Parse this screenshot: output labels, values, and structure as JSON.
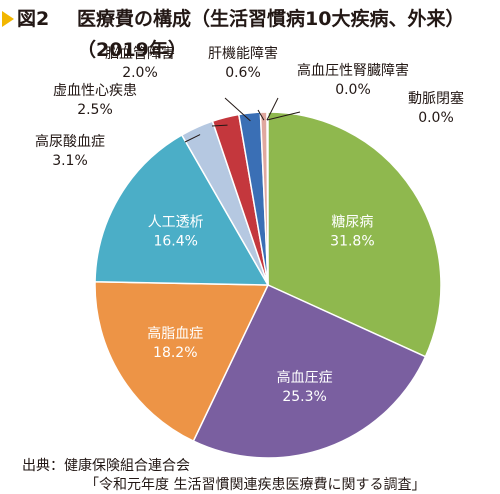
{
  "figure": {
    "label": "図2",
    "title_line1": "医療費の構成（生活習慣病10大疾病、外来）",
    "title_line2": "（2019年）"
  },
  "source": {
    "line1": "出典：健康保険組合連合会",
    "line2": "「令和元年度 生活習慣関連疾患医療費に関する調査」"
  },
  "colors": {
    "marker": "#f2b600",
    "leader_line": "#231815",
    "slice_border": "#ffffff"
  },
  "chart_data": {
    "type": "pie",
    "unit": "%",
    "start_angle_deg": 0,
    "direction": "clockwise",
    "slices": [
      {
        "label": "糖尿病",
        "value": 31.8,
        "value_label": "31.8%",
        "color": "#8fb84e",
        "label_placement": "inside"
      },
      {
        "label": "高血圧症",
        "value": 25.3,
        "value_label": "25.3%",
        "color": "#7a5fa0",
        "label_placement": "inside"
      },
      {
        "label": "高脂血症",
        "value": 18.2,
        "value_label": "18.2%",
        "color": "#ed9446",
        "label_placement": "inside"
      },
      {
        "label": "人工透析",
        "value": 16.4,
        "value_label": "16.4%",
        "color": "#4baec7",
        "label_placement": "inside"
      },
      {
        "label": "高尿酸血症",
        "value": 3.1,
        "value_label": "3.1%",
        "color": "#b5c8e1",
        "label_placement": "outside"
      },
      {
        "label": "虚血性心疾患",
        "value": 2.5,
        "value_label": "2.5%",
        "color": "#c4373d",
        "label_placement": "outside"
      },
      {
        "label": "脳血管障害",
        "value": 2.0,
        "value_label": "2.0%",
        "color": "#3a6fb5",
        "label_placement": "outside"
      },
      {
        "label": "肝機能障害",
        "value": 0.6,
        "value_label": "0.6%",
        "color": "#e0a89f",
        "label_placement": "outside"
      },
      {
        "label": "高血圧性腎臓障害",
        "value": 0.0,
        "value_label": "0.0%",
        "color": "#e0a89f",
        "label_placement": "outside"
      },
      {
        "label": "動脈閉塞",
        "value": 0.0,
        "value_label": "0.0%",
        "color": "#e0a89f",
        "label_placement": "outside"
      }
    ]
  }
}
